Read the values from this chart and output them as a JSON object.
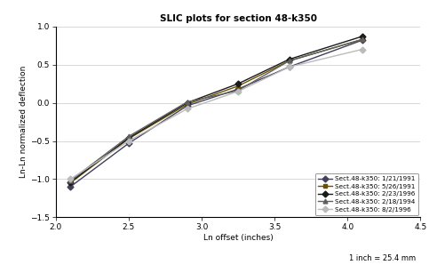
{
  "title": "SLIC plots for section 48-k350",
  "xlabel": "Ln offset (inches)",
  "ylabel": "Ln-Ln normalized deflection",
  "footnote": "1 inch = 25.4 mm",
  "xlim": [
    2.0,
    4.5
  ],
  "ylim": [
    -1.5,
    1.0
  ],
  "xticks": [
    2.0,
    2.5,
    3.0,
    3.5,
    4.0,
    4.5
  ],
  "yticks": [
    -1.5,
    -1.0,
    -0.5,
    0.0,
    0.5,
    1.0
  ],
  "series": [
    {
      "label": "Sect.48-k350: 1/21/1991",
      "color": "#404060",
      "marker": "D",
      "markersize": 3.5,
      "linewidth": 1.0,
      "linestyle": "-",
      "x": [
        2.1,
        2.5,
        2.9,
        3.25,
        3.6,
        4.1
      ],
      "y": [
        -1.1,
        -0.53,
        -0.04,
        0.18,
        0.47,
        0.82
      ]
    },
    {
      "label": "Sect.48-k350: 5/26/1991",
      "color": "#6b5000",
      "marker": "s",
      "markersize": 3.5,
      "linewidth": 1.0,
      "linestyle": "-",
      "x": [
        2.1,
        2.5,
        2.9,
        3.25,
        3.6,
        4.1
      ],
      "y": [
        -1.05,
        -0.47,
        -0.02,
        0.22,
        0.55,
        0.83
      ]
    },
    {
      "label": "Sect.48-k350: 2/23/1996",
      "color": "#1a1a1a",
      "marker": "D",
      "markersize": 3.5,
      "linewidth": 1.0,
      "linestyle": "-",
      "x": [
        2.1,
        2.5,
        2.9,
        3.25,
        3.6,
        4.1
      ],
      "y": [
        -1.04,
        -0.46,
        0.0,
        0.25,
        0.57,
        0.87
      ]
    },
    {
      "label": "Sect.48-k350: 2/18/1994",
      "color": "#606060",
      "marker": "^",
      "markersize": 3.5,
      "linewidth": 1.0,
      "linestyle": "-",
      "x": [
        2.1,
        2.5,
        2.9,
        3.25,
        3.6,
        4.1
      ],
      "y": [
        -1.02,
        -0.44,
        0.01,
        0.16,
        0.55,
        0.83
      ]
    },
    {
      "label": "Sect.48-k350: 8/2/1996",
      "color": "#bbbbbb",
      "marker": "D",
      "markersize": 3.5,
      "linewidth": 1.0,
      "linestyle": "-",
      "x": [
        2.1,
        2.5,
        2.9,
        3.25,
        3.6,
        4.1
      ],
      "y": [
        -1.0,
        -0.5,
        -0.08,
        0.15,
        0.47,
        0.7
      ]
    }
  ]
}
